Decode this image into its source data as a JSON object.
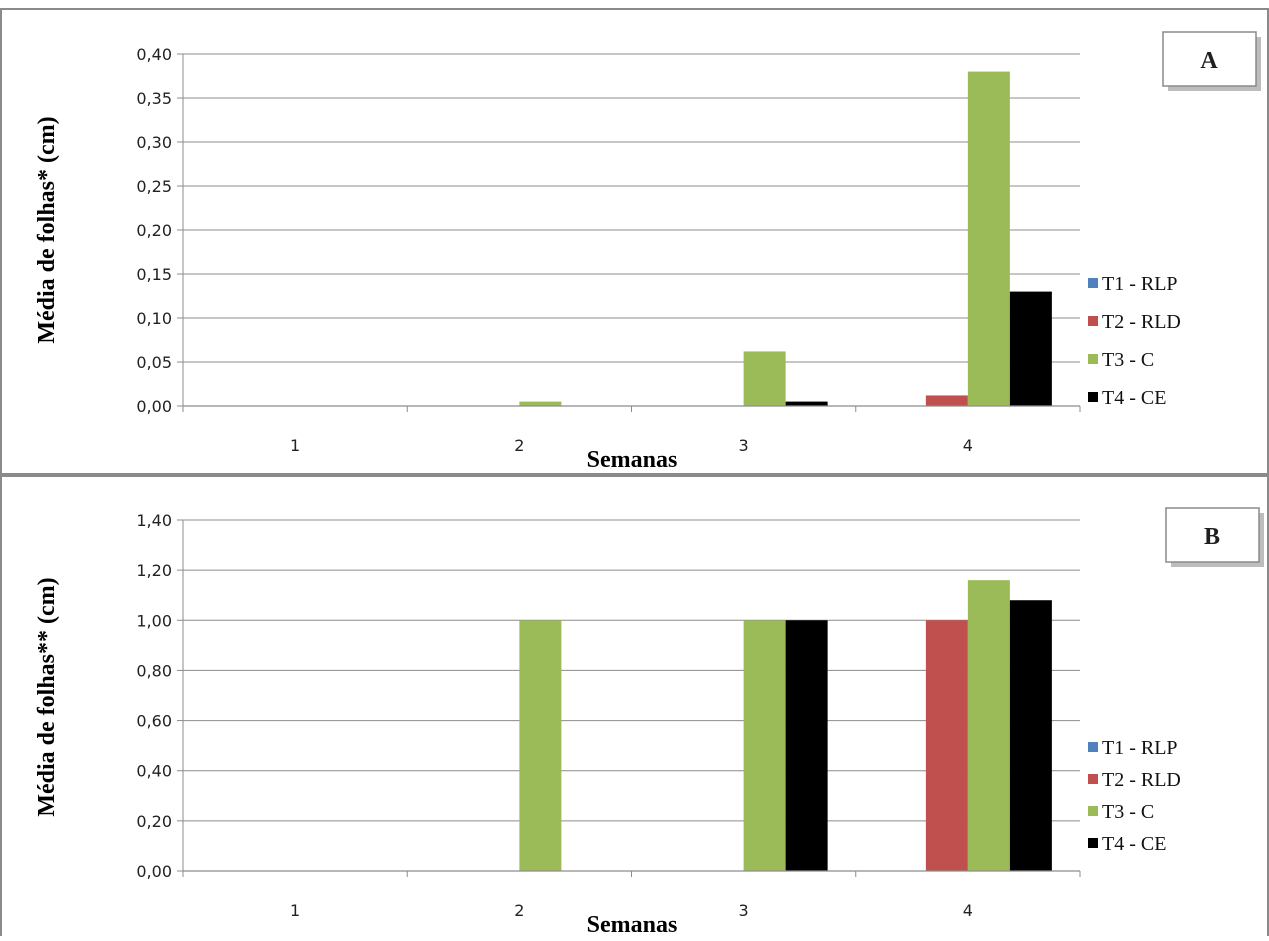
{
  "chart_data": [
    {
      "type": "bar",
      "panel_label": "A",
      "categories": [
        "1",
        "2",
        "3",
        "4"
      ],
      "xlabel": "Semanas",
      "ylabel": "Média de folhas* (cm)",
      "ylim": [
        0,
        0.4
      ],
      "yticks": [
        "0,00",
        "0,05",
        "0,10",
        "0,15",
        "0,20",
        "0,25",
        "0,30",
        "0,35",
        "0,40"
      ],
      "grid": true,
      "legend_position": "right",
      "series": [
        {
          "name": "T1 - RLP",
          "color": "#4F81BD",
          "values": [
            0,
            0,
            0,
            0
          ]
        },
        {
          "name": "T2 - RLD",
          "color": "#C0504D",
          "values": [
            0,
            0,
            0,
            0.012
          ]
        },
        {
          "name": "T3 - C",
          "color": "#9BBB59",
          "values": [
            0,
            0.005,
            0.062,
            0.38
          ]
        },
        {
          "name": "T4 - CE",
          "color": "#000000",
          "values": [
            0,
            0,
            0.005,
            0.13
          ]
        }
      ]
    },
    {
      "type": "bar",
      "panel_label": "B",
      "categories": [
        "1",
        "2",
        "3",
        "4"
      ],
      "xlabel": "Semanas",
      "ylabel": "Média  de folhas** (cm)",
      "ylim": [
        0,
        1.4
      ],
      "yticks": [
        "0,00",
        "0,20",
        "0,40",
        "0,60",
        "0,80",
        "1,00",
        "1,20",
        "1,40"
      ],
      "grid": true,
      "legend_position": "right",
      "series": [
        {
          "name": "T1 - RLP",
          "color": "#4F81BD",
          "values": [
            0,
            0,
            0,
            0
          ]
        },
        {
          "name": "T2 - RLD",
          "color": "#C0504D",
          "values": [
            0,
            0,
            0,
            1.0
          ]
        },
        {
          "name": "T3 - C",
          "color": "#9BBB59",
          "values": [
            0,
            1.0,
            1.0,
            1.16
          ]
        },
        {
          "name": "T4 - CE",
          "color": "#000000",
          "values": [
            0,
            0,
            1.0,
            1.08
          ]
        }
      ]
    }
  ]
}
